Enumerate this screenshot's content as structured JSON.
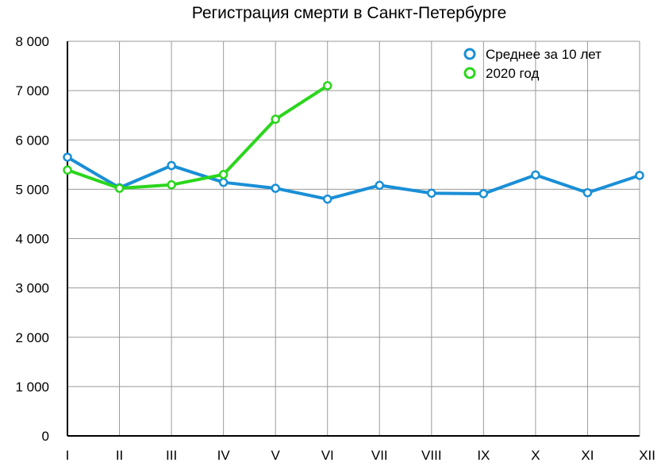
{
  "chart_data": {
    "type": "line",
    "title": "Регистрация смерти в Санкт-Петербурге",
    "categories": [
      "I",
      "II",
      "III",
      "IV",
      "V",
      "VI",
      "VII",
      "VIII",
      "IX",
      "X",
      "XI",
      "XII"
    ],
    "y_ticks": [
      "0",
      "1 000",
      "2 000",
      "3 000",
      "4 000",
      "5 000",
      "6 000",
      "7 000",
      "8 000"
    ],
    "ylim": [
      0,
      8000
    ],
    "grid": true,
    "legend_position": "top-right",
    "series": [
      {
        "name": "Среднее за 10 лет",
        "color": "#1a8fd6",
        "values": [
          5650,
          5030,
          5480,
          5140,
          5020,
          4800,
          5080,
          4920,
          4910,
          5290,
          4930,
          5280
        ]
      },
      {
        "name": "2020 год",
        "color": "#2bd61d",
        "values": [
          5390,
          5020,
          5090,
          5300,
          6420,
          7100,
          null,
          null,
          null,
          null,
          null,
          null
        ]
      }
    ]
  }
}
